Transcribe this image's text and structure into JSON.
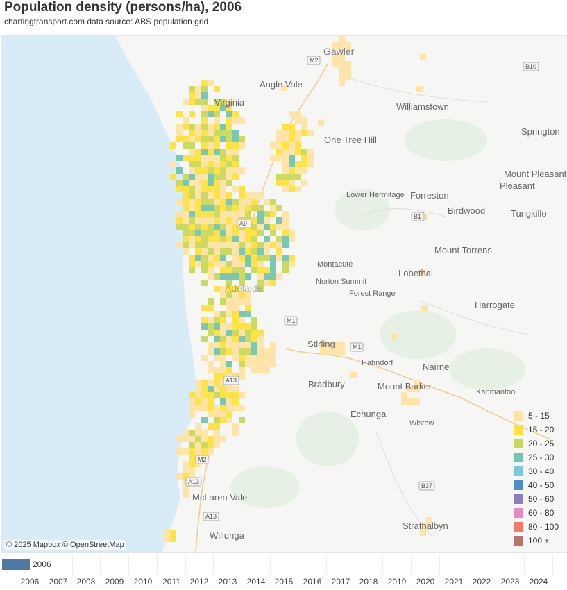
{
  "title": "Population density (persons/ha), 2006",
  "subtitle": "chartingtransport.com  data source: ABS population grid",
  "attribution": "© 2025 Mapbox © OpenStreetMap",
  "map": {
    "water_color": "#d7ecf7",
    "land_color": "#f6f6f4",
    "place_names": [
      "Gawler",
      "Angle Vale",
      "Virginia",
      "Williamstown",
      "One Tree Hill",
      "Springton",
      "Mount Pleasant",
      "Lower Hermitage",
      "Forreston",
      "Birdwood",
      "Tungkillo",
      "Mount Torrens",
      "Montacute",
      "Norton Summit",
      "Forest Range",
      "Lobethal",
      "Harrogate",
      "Adelaide",
      "Stirling",
      "Hahndorf",
      "Nairne",
      "Bradbury",
      "Mount Barker",
      "Kanmantoo",
      "Echunga",
      "Wistow",
      "McLaren Vale",
      "Willunga",
      "Strathalbyn"
    ],
    "road_labels": [
      "M2",
      "B10",
      "B1",
      "A9",
      "M1",
      "M1",
      "A13",
      "M2",
      "A13",
      "A13",
      "B37"
    ]
  },
  "legend": [
    {
      "label": "5 - 15",
      "color": "#fde3a4"
    },
    {
      "label": "15 - 20",
      "color": "#fde23b"
    },
    {
      "label": "20 - 25",
      "color": "#c9d85b"
    },
    {
      "label": "25 - 30",
      "color": "#72c5b1"
    },
    {
      "label": "30 - 40",
      "color": "#7ec8dd"
    },
    {
      "label": "40 - 50",
      "color": "#4a8fc7"
    },
    {
      "label": "50 - 60",
      "color": "#8b7fc0"
    },
    {
      "label": "60 - 80",
      "color": "#e68ac0"
    },
    {
      "label": "80 - 100",
      "color": "#ef7a6a"
    },
    {
      "label": "100 +",
      "color": "#b57369"
    }
  ],
  "timeline": {
    "selected": "2006",
    "years": [
      "2006",
      "2007",
      "2008",
      "2009",
      "2010",
      "2011",
      "2012",
      "2013",
      "2014",
      "2015",
      "2016",
      "2017",
      "2018",
      "2019",
      "2020",
      "2021",
      "2022",
      "2023",
      "2024"
    ]
  }
}
